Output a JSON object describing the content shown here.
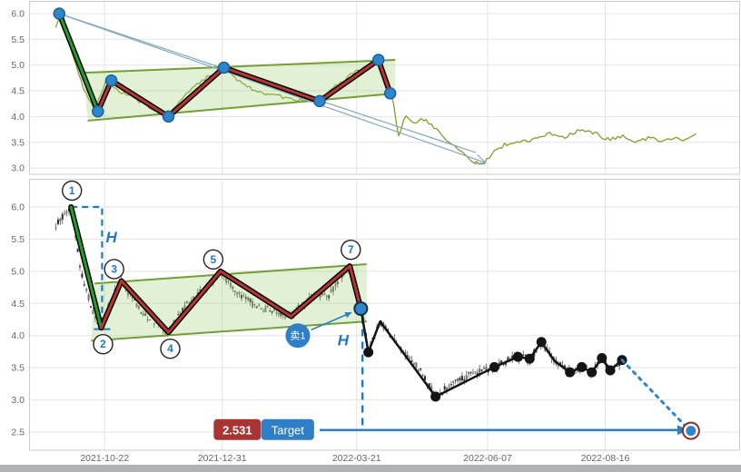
{
  "colors": {
    "grid": "#e4e4e4",
    "panel_border": "#cccccc",
    "axis_text": "#666666",
    "zigzag_red": "#b9352f",
    "zigzag_green": "#21a126",
    "zigzag_casing": "#000000",
    "channel_line": "#71a033",
    "channel_fill": "rgba(160,205,116,0.30)",
    "price_line_olive": "#8b9a2b",
    "dot_blue": "#2e86c8",
    "dot_blue_edge": "#1663a0",
    "blue": "#1f78c8",
    "black_line": "#141414",
    "badge_red": "#a93434",
    "badge_blue": "#2e7fc6",
    "candle_dark": "#2f2f2f",
    "candle_light": "#6d6d6d",
    "wick": "#555555",
    "projection": "#86a8bd",
    "target_ring": "#8a2a2a"
  },
  "chart_data": [
    {
      "id": "overview",
      "type": "line",
      "title": "",
      "ylim": [
        2.95,
        6.1
      ],
      "y_ticks": [
        6.0,
        5.5,
        5.0,
        4.5,
        4.0,
        3.5,
        3.0
      ],
      "grid": "on",
      "price_line": [
        [
          3,
          5.75
        ],
        [
          7,
          6.0
        ],
        [
          12,
          5.3
        ],
        [
          20,
          4.5
        ],
        [
          26,
          4.15
        ],
        [
          33,
          4.7
        ],
        [
          40,
          4.5
        ],
        [
          50,
          4.35
        ],
        [
          60,
          4.15
        ],
        [
          70,
          4.05
        ],
        [
          80,
          4.45
        ],
        [
          90,
          4.7
        ],
        [
          100,
          4.9
        ],
        [
          103,
          4.95
        ],
        [
          112,
          4.7
        ],
        [
          122,
          4.5
        ],
        [
          132,
          4.42
        ],
        [
          143,
          4.35
        ],
        [
          152,
          4.3
        ],
        [
          160,
          4.32
        ],
        [
          170,
          4.6
        ],
        [
          180,
          4.85
        ],
        [
          190,
          5.0
        ],
        [
          195,
          5.1
        ],
        [
          199,
          4.6
        ],
        [
          203,
          4.45
        ],
        [
          207,
          3.62
        ],
        [
          211,
          4.0
        ],
        [
          216,
          3.85
        ],
        [
          222,
          3.95
        ],
        [
          228,
          3.8
        ],
        [
          235,
          3.55
        ],
        [
          242,
          3.4
        ],
        [
          250,
          3.15
        ],
        [
          257,
          3.05
        ],
        [
          263,
          3.3
        ],
        [
          270,
          3.45
        ],
        [
          278,
          3.5
        ],
        [
          287,
          3.55
        ],
        [
          297,
          3.68
        ],
        [
          306,
          3.6
        ],
        [
          314,
          3.72
        ],
        [
          323,
          3.68
        ],
        [
          332,
          3.55
        ],
        [
          340,
          3.62
        ],
        [
          349,
          3.5
        ],
        [
          357,
          3.6
        ],
        [
          365,
          3.52
        ],
        [
          372,
          3.58
        ],
        [
          378,
          3.55
        ],
        [
          385,
          3.68
        ]
      ],
      "zigzag": [
        [
          5,
          6.0
        ],
        [
          28,
          4.1
        ],
        [
          36,
          4.7
        ],
        [
          70,
          4.0
        ],
        [
          103,
          4.95
        ],
        [
          160,
          4.3
        ],
        [
          195,
          5.1
        ],
        [
          202,
          4.45
        ]
      ],
      "channel": {
        "upper": [
          [
            19,
            4.85
          ],
          [
            205,
            5.1
          ]
        ],
        "lower": [
          [
            22,
            3.92
          ],
          [
            205,
            4.45
          ]
        ]
      },
      "projection_arrows": [
        [
          [
            5,
            6.0
          ],
          [
            259,
            3.1
          ]
        ],
        [
          [
            5,
            6.0
          ],
          [
            253,
            3.3
          ]
        ]
      ]
    },
    {
      "id": "main",
      "type": "candlestick",
      "title": "",
      "ylim": [
        2.3,
        6.1
      ],
      "y_ticks": [
        6.0,
        5.5,
        5.0,
        4.5,
        4.0,
        3.5,
        3.0,
        2.5
      ],
      "x_ticks": [
        {
          "t": 32,
          "label": "2021-10-22"
        },
        {
          "t": 102,
          "label": "2021-12-31"
        },
        {
          "t": 182,
          "label": "2022-03-21"
        },
        {
          "t": 260,
          "label": "2022-06-07"
        },
        {
          "t": 330,
          "label": "2022-08-16"
        }
      ],
      "grid": "on",
      "candle_anchors": [
        [
          3,
          5.7
        ],
        [
          8,
          5.9
        ],
        [
          12,
          6.0
        ],
        [
          18,
          5.0
        ],
        [
          25,
          4.35
        ],
        [
          30,
          4.12
        ],
        [
          36,
          4.6
        ],
        [
          42,
          4.85
        ],
        [
          50,
          4.5
        ],
        [
          57,
          4.3
        ],
        [
          64,
          4.2
        ],
        [
          70,
          4.05
        ],
        [
          78,
          4.4
        ],
        [
          88,
          4.65
        ],
        [
          95,
          4.8
        ],
        [
          101,
          5.0
        ],
        [
          108,
          4.75
        ],
        [
          115,
          4.6
        ],
        [
          122,
          4.45
        ],
        [
          130,
          4.4
        ],
        [
          137,
          4.35
        ],
        [
          143,
          4.3
        ],
        [
          150,
          4.5
        ],
        [
          158,
          4.65
        ],
        [
          165,
          4.6
        ],
        [
          172,
          4.9
        ],
        [
          178,
          5.08
        ],
        [
          182,
          4.7
        ],
        [
          185,
          4.45
        ],
        [
          189,
          3.74
        ],
        [
          196,
          4.22
        ],
        [
          204,
          3.95
        ],
        [
          212,
          3.7
        ],
        [
          220,
          3.45
        ],
        [
          229,
          3.05
        ],
        [
          240,
          3.28
        ],
        [
          252,
          3.42
        ],
        [
          264,
          3.51
        ],
        [
          271,
          3.6
        ],
        [
          278,
          3.67
        ],
        [
          285,
          3.64
        ],
        [
          292,
          3.88
        ],
        [
          300,
          3.6
        ],
        [
          309,
          3.43
        ],
        [
          316,
          3.51
        ],
        [
          322,
          3.43
        ],
        [
          328,
          3.65
        ],
        [
          333,
          3.46
        ],
        [
          340,
          3.6
        ]
      ],
      "zigzag": [
        [
          12,
          6.0
        ],
        [
          30,
          4.12
        ],
        [
          42,
          4.85
        ],
        [
          70,
          4.05
        ],
        [
          101,
          5.0
        ],
        [
          143,
          4.3
        ],
        [
          178,
          5.08
        ],
        [
          184.5,
          4.42
        ]
      ],
      "channel": {
        "upper": [
          [
            26,
            4.81
          ],
          [
            188,
            5.11
          ]
        ],
        "lower": [
          [
            24,
            3.92
          ],
          [
            188,
            4.22
          ]
        ]
      },
      "wave_labels": [
        {
          "n": "1",
          "t": 12,
          "p": 6.0,
          "pos": "above"
        },
        {
          "n": "2",
          "t": 30,
          "p": 4.12,
          "pos": "below"
        },
        {
          "n": "3",
          "t": 42,
          "p": 4.85,
          "pos": "above-left"
        },
        {
          "n": "4",
          "t": 70,
          "p": 4.05,
          "pos": "below"
        },
        {
          "n": "5",
          "t": 101,
          "p": 5.0,
          "pos": "above-left"
        },
        {
          "n": "7",
          "t": 178,
          "p": 5.08,
          "pos": "above"
        }
      ],
      "h_labels": [
        {
          "t": 36,
          "p": 5.45,
          "text": "H"
        },
        {
          "t": 174,
          "p": 3.85,
          "text": "H"
        }
      ],
      "measure_path": {
        "from_t": 12,
        "corner_t": 30.5,
        "top_p": 6.0,
        "bottom_p": 4.1
      },
      "sell": {
        "badge_text": "卖1",
        "badge_t": 147,
        "badge_p": 4.0,
        "point_t": 184.5,
        "point_p": 4.42
      },
      "sell_drop_t": 185.5,
      "post_line": [
        [
          184.5,
          4.42,
          0
        ],
        [
          189,
          3.74,
          1
        ],
        [
          196,
          4.22,
          0
        ],
        [
          229,
          3.05,
          1
        ],
        [
          248,
          3.3,
          0
        ],
        [
          264,
          3.51,
          1
        ],
        [
          278,
          3.67,
          1
        ],
        [
          285,
          3.64,
          1
        ],
        [
          292,
          3.9,
          1
        ],
        [
          300,
          3.6,
          0
        ],
        [
          309,
          3.43,
          1
        ],
        [
          316,
          3.51,
          1
        ],
        [
          322,
          3.43,
          1
        ],
        [
          328,
          3.65,
          1
        ],
        [
          333,
          3.46,
          1
        ],
        [
          340,
          3.62,
          1
        ]
      ],
      "projection_dotted": [
        [
          340,
          3.62
        ],
        [
          379,
          2.56
        ]
      ],
      "target": {
        "value": "2.531",
        "label": "Target",
        "p": 2.531,
        "value_badge_t": 111,
        "label_badge_t": 141,
        "arrow_from_t": 160,
        "arrow_to_t": 374,
        "point_t": 381,
        "point_p": 2.52
      }
    }
  ]
}
